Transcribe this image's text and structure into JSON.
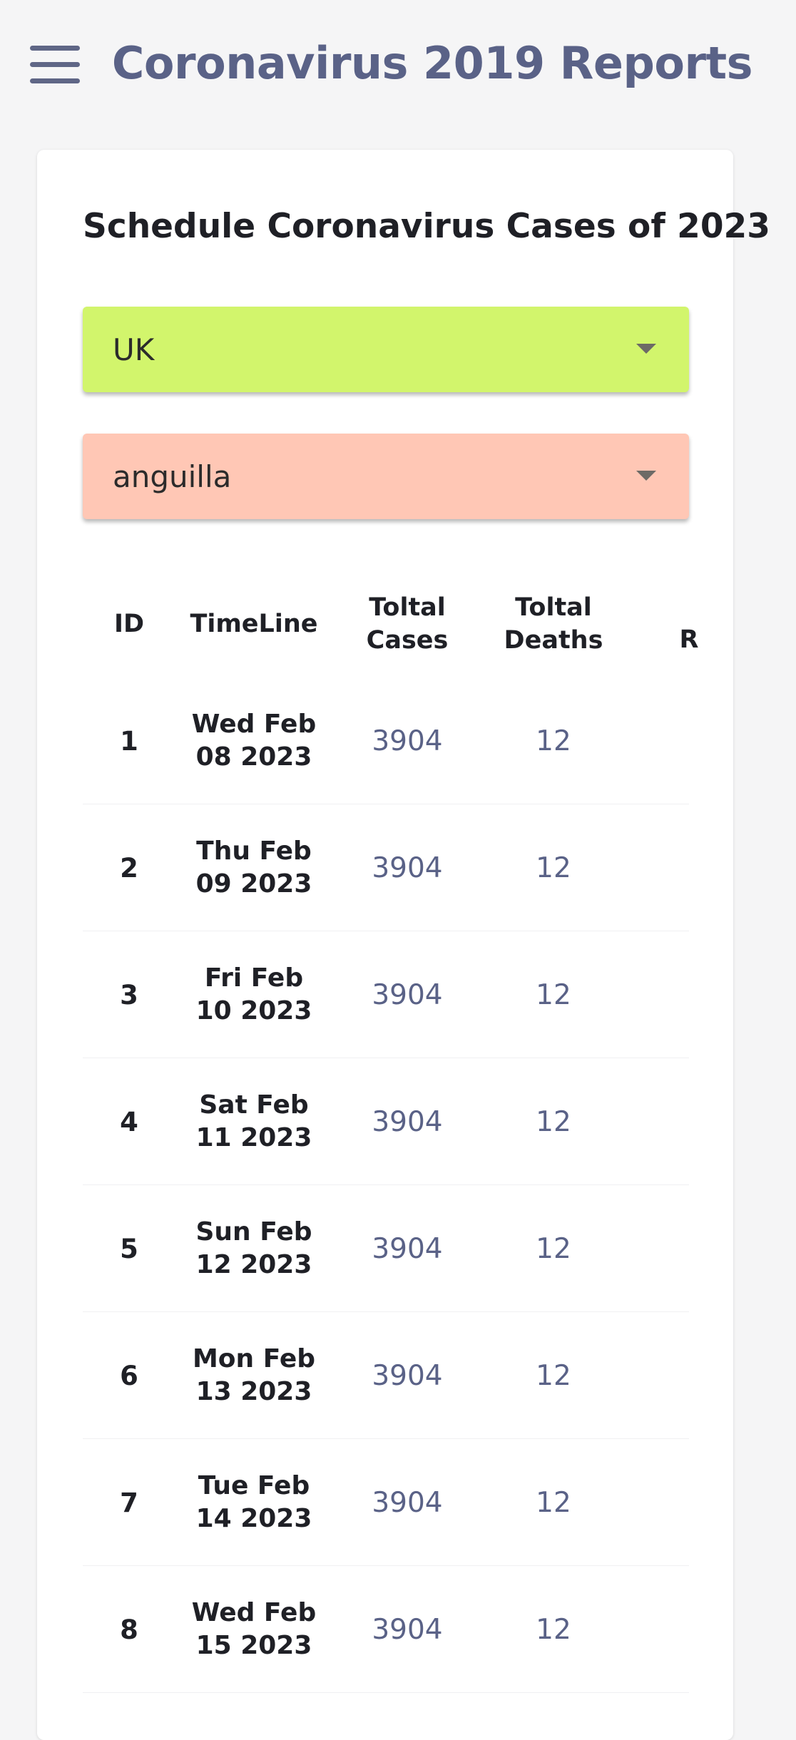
{
  "app_bar": {
    "title": "Coronavirus 2019 Reports",
    "menu_icon": "hamburger-menu-icon"
  },
  "card": {
    "title": "Schedule Coronavirus Cases of 2023",
    "country_select": {
      "value": "UK",
      "color": "#d2f56c"
    },
    "region_select": {
      "value": "anguilla",
      "color": "#ffc7b5"
    }
  },
  "table": {
    "headers": {
      "id": "ID",
      "timeline": "TimeLine",
      "cases_line1": "Toltal",
      "cases_line2": "Cases",
      "deaths_line1": "Toltal",
      "deaths_line2": "Deaths",
      "recovered": "R"
    },
    "rows": [
      {
        "id": "1",
        "date_line1": "Wed Feb",
        "date_line2": "08 2023",
        "cases": "3904",
        "deaths": "12"
      },
      {
        "id": "2",
        "date_line1": "Thu Feb",
        "date_line2": "09 2023",
        "cases": "3904",
        "deaths": "12"
      },
      {
        "id": "3",
        "date_line1": "Fri Feb",
        "date_line2": "10 2023",
        "cases": "3904",
        "deaths": "12"
      },
      {
        "id": "4",
        "date_line1": "Sat Feb",
        "date_line2": "11 2023",
        "cases": "3904",
        "deaths": "12"
      },
      {
        "id": "5",
        "date_line1": "Sun Feb",
        "date_line2": "12 2023",
        "cases": "3904",
        "deaths": "12"
      },
      {
        "id": "6",
        "date_line1": "Mon Feb",
        "date_line2": "13 2023",
        "cases": "3904",
        "deaths": "12"
      },
      {
        "id": "7",
        "date_line1": "Tue Feb",
        "date_line2": "14 2023",
        "cases": "3904",
        "deaths": "12"
      },
      {
        "id": "8",
        "date_line1": "Wed Feb",
        "date_line2": "15 2023",
        "cases": "3904",
        "deaths": "12"
      }
    ]
  }
}
